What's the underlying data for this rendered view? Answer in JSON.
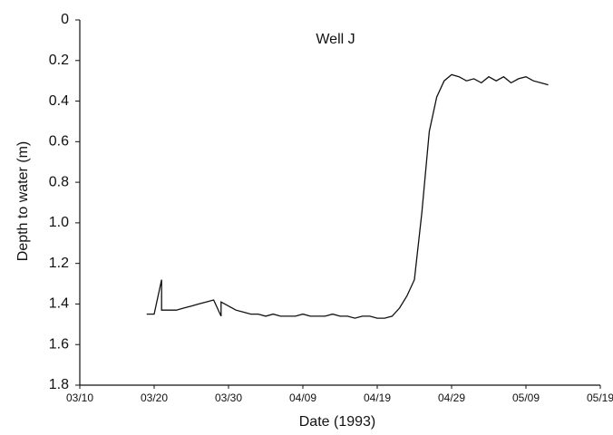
{
  "chart_data": {
    "type": "line",
    "title": "Well J",
    "x_label": "Date (1993)",
    "y_label": "Depth to water (m)",
    "x": [
      "03/19",
      "03/20",
      "03/21",
      "03/21",
      "03/22",
      "03/23",
      "03/24",
      "03/25",
      "03/26",
      "03/27",
      "03/28",
      "03/29",
      "03/29",
      "03/30",
      "03/31",
      "04/01",
      "04/02",
      "04/03",
      "04/04",
      "04/05",
      "04/06",
      "04/07",
      "04/08",
      "04/09",
      "04/10",
      "04/11",
      "04/12",
      "04/13",
      "04/14",
      "04/15",
      "04/16",
      "04/17",
      "04/18",
      "04/19",
      "04/20",
      "04/21",
      "04/22",
      "04/23",
      "04/24",
      "04/25",
      "04/26",
      "04/27",
      "04/28",
      "04/29",
      "04/30",
      "05/01",
      "05/02",
      "05/03",
      "05/04",
      "05/05",
      "05/06",
      "05/07",
      "05/08",
      "05/09",
      "05/10",
      "05/11",
      "05/12"
    ],
    "values": [
      1.45,
      1.45,
      1.28,
      1.43,
      1.43,
      1.43,
      1.42,
      1.41,
      1.4,
      1.39,
      1.38,
      1.46,
      1.39,
      1.41,
      1.43,
      1.44,
      1.45,
      1.45,
      1.46,
      1.45,
      1.46,
      1.46,
      1.46,
      1.45,
      1.46,
      1.46,
      1.46,
      1.45,
      1.46,
      1.46,
      1.47,
      1.46,
      1.46,
      1.47,
      1.47,
      1.46,
      1.42,
      1.36,
      1.28,
      0.95,
      0.55,
      0.38,
      0.3,
      0.27,
      0.28,
      0.3,
      0.29,
      0.31,
      0.28,
      0.3,
      0.28,
      0.31,
      0.29,
      0.28,
      0.3,
      0.31,
      0.32
    ],
    "color": "#111111",
    "xlim": [
      "03/10",
      "05/19"
    ],
    "xticks": [
      "03/10",
      "03/20",
      "03/30",
      "04/09",
      "04/19",
      "04/29",
      "05/09",
      "05/19"
    ],
    "ylim": [
      0,
      1.8
    ],
    "y_inverted": true,
    "yticks": [
      0,
      0.2,
      0.4,
      0.6,
      0.8,
      {
        "value": 1,
        "label": "1.0"
      },
      1.2,
      1.4,
      1.6,
      1.8
    ]
  }
}
